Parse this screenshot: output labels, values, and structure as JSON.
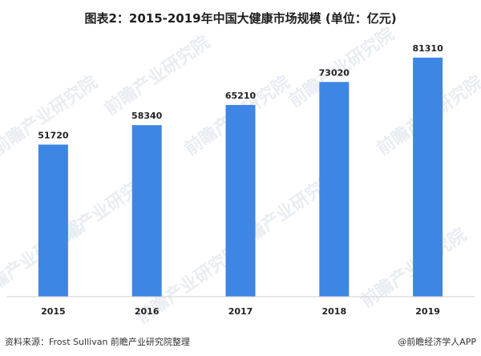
{
  "header": {
    "title": "图表2：2015-2019年中国大健康市场规模 (单位：亿元)"
  },
  "chart_data": {
    "type": "bar",
    "title": "图表2：2015-2019年中国大健康市场规模 (单位：亿元)",
    "categories": [
      "2015",
      "2016",
      "2017",
      "2018",
      "2019"
    ],
    "values": [
      51720,
      58340,
      65210,
      73020,
      81310
    ],
    "data_labels": [
      "51720",
      "58340",
      "65210",
      "73020",
      "81310"
    ],
    "xlabel": "",
    "ylabel": "",
    "ylim": [
      0,
      90000
    ],
    "grid": false,
    "legend": "none",
    "bar_color": "#3d86e4"
  },
  "watermark": {
    "text": "前瞻产业研究院"
  },
  "footer": {
    "source": "资料来源：Frost Sullivan  前瞻产业研究院整理",
    "brand": "@前瞻经济学人APP"
  }
}
